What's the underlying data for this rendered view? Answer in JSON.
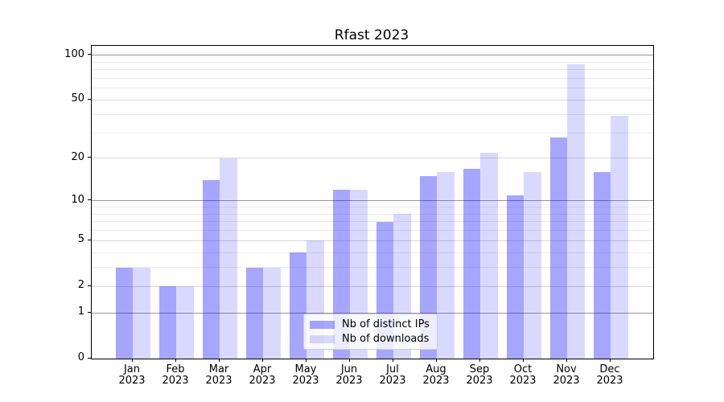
{
  "title": "Rfast 2023",
  "chart_data": {
    "type": "bar",
    "title": "Rfast 2023",
    "categories": [
      "Jan 2023",
      "Feb 2023",
      "Mar 2023",
      "Apr 2023",
      "May 2023",
      "Jun 2023",
      "Jul 2023",
      "Aug 2023",
      "Sep 2023",
      "Oct 2023",
      "Nov 2023",
      "Dec 2023"
    ],
    "months": [
      "Jan",
      "Feb",
      "Mar",
      "Apr",
      "May",
      "Jun",
      "Jul",
      "Aug",
      "Sep",
      "Oct",
      "Nov",
      "Dec"
    ],
    "year": "2023",
    "series": [
      {
        "name": "Nb of distinct IPs",
        "color": "rgba(0,0,255,0.35)",
        "values": [
          3,
          2,
          14,
          3,
          4,
          12,
          7,
          15,
          17,
          11,
          28,
          16
        ]
      },
      {
        "name": "Nb of downloads",
        "color": "rgba(0,0,255,0.15)",
        "values": [
          3,
          2,
          20,
          3,
          5,
          12,
          8,
          16,
          22,
          16,
          87,
          39
        ]
      }
    ],
    "xlabel": "",
    "ylabel": "",
    "yscale": "log1p",
    "ylim": [
      0,
      100
    ],
    "yticks": [
      0,
      1,
      2,
      5,
      10,
      20,
      50,
      100
    ],
    "ytick_labels": [
      "0",
      "1",
      "2",
      "5",
      "10",
      "20",
      "50",
      "100"
    ],
    "grid": true,
    "gridlines": {
      "dark": {
        "values": [
          1,
          10,
          100
        ],
        "color": "#999999"
      },
      "light": {
        "values": [
          2,
          5,
          20,
          50
        ],
        "color": "#d9d9d9"
      },
      "minor": {
        "values": [
          3,
          4,
          6,
          7,
          8,
          9,
          30,
          40,
          60,
          70,
          80,
          90
        ],
        "color": "#ececec"
      }
    },
    "legend_position": "lower center",
    "legend": {
      "items": [
        {
          "label": "Nb of distinct IPs",
          "color": "rgba(0,0,255,0.35)"
        },
        {
          "label": "Nb of downloads",
          "color": "rgba(0,0,255,0.15)"
        }
      ]
    }
  }
}
